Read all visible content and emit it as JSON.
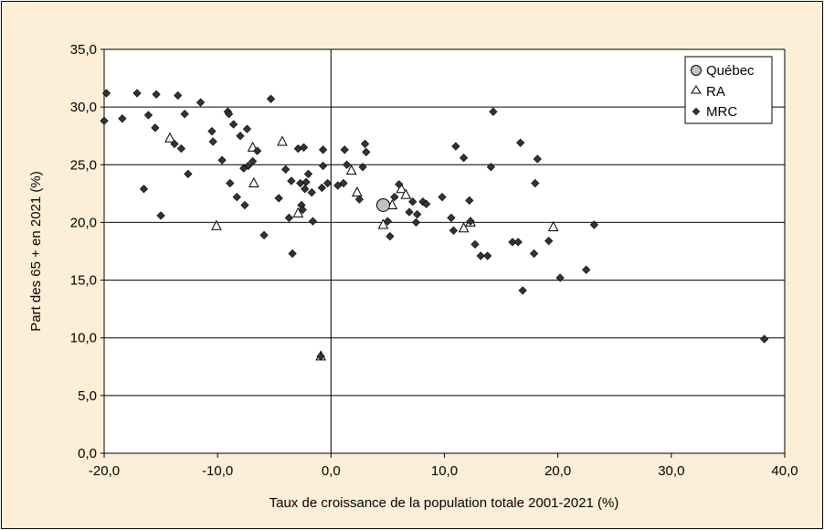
{
  "chart_data": {
    "type": "scatter",
    "xlabel": "Taux de croissance de la population totale 2001-2021 (%)",
    "ylabel": "Part des 65 + en 2021 (%)",
    "xlim": [
      -20,
      40
    ],
    "ylim": [
      0,
      35
    ],
    "x_ticks": [
      "-20,0",
      "-10,0",
      "0,0",
      "10,0",
      "20,0",
      "30,0",
      "40,0"
    ],
    "y_ticks": [
      "0,0",
      "5,0",
      "10,0",
      "15,0",
      "20,0",
      "25,0",
      "30,0",
      "35,0"
    ],
    "grid": "horizontal",
    "legend_position": "top-right",
    "series": [
      {
        "name": "Québec",
        "marker": "circle",
        "color": "#c0c0c0",
        "points": [
          [
            4.6,
            21.5
          ]
        ]
      },
      {
        "name": "RA",
        "marker": "triangle",
        "color": "#ffffff",
        "points": [
          [
            -14.2,
            27.3
          ],
          [
            -10.1,
            19.7
          ],
          [
            -6.9,
            26.5
          ],
          [
            -6.8,
            23.4
          ],
          [
            -4.3,
            27.0
          ],
          [
            -2.9,
            20.8
          ],
          [
            -0.9,
            8.4
          ],
          [
            1.8,
            24.5
          ],
          [
            2.3,
            22.6
          ],
          [
            4.6,
            19.8
          ],
          [
            5.4,
            21.5
          ],
          [
            6.2,
            22.9
          ],
          [
            6.6,
            22.4
          ],
          [
            11.7,
            19.5
          ],
          [
            12.3,
            20.0
          ],
          [
            19.6,
            19.6
          ]
        ]
      },
      {
        "name": "MRC",
        "marker": "diamond",
        "color": "#333333",
        "points": [
          [
            -20.0,
            28.8
          ],
          [
            -19.8,
            31.2
          ],
          [
            -18.4,
            29.0
          ],
          [
            -17.1,
            31.2
          ],
          [
            -16.5,
            22.9
          ],
          [
            -16.1,
            29.3
          ],
          [
            -15.5,
            28.2
          ],
          [
            -15.4,
            31.1
          ],
          [
            -15.0,
            20.6
          ],
          [
            -13.8,
            26.8
          ],
          [
            -13.5,
            31.0
          ],
          [
            -13.2,
            26.4
          ],
          [
            -12.9,
            29.4
          ],
          [
            -12.6,
            24.2
          ],
          [
            -11.5,
            30.4
          ],
          [
            -10.5,
            27.9
          ],
          [
            -10.4,
            27.0
          ],
          [
            -9.6,
            25.4
          ],
          [
            -9.1,
            29.6
          ],
          [
            -9.0,
            29.4
          ],
          [
            -8.9,
            23.4
          ],
          [
            -8.6,
            28.5
          ],
          [
            -8.3,
            22.2
          ],
          [
            -8.0,
            27.5
          ],
          [
            -7.7,
            24.7
          ],
          [
            -7.6,
            21.5
          ],
          [
            -7.4,
            28.1
          ],
          [
            -7.3,
            24.9
          ],
          [
            -6.9,
            25.3
          ],
          [
            -6.5,
            26.2
          ],
          [
            -5.9,
            18.9
          ],
          [
            -5.3,
            30.7
          ],
          [
            -4.6,
            22.1
          ],
          [
            -4.0,
            24.6
          ],
          [
            -3.7,
            20.4
          ],
          [
            -3.5,
            23.6
          ],
          [
            -3.4,
            17.3
          ],
          [
            -2.9,
            26.4
          ],
          [
            -2.7,
            23.4
          ],
          [
            -2.6,
            21.5
          ],
          [
            -2.5,
            21.1
          ],
          [
            -2.4,
            26.5
          ],
          [
            -2.3,
            22.9
          ],
          [
            -2.2,
            23.5
          ],
          [
            -2.0,
            24.2
          ],
          [
            -1.7,
            22.6
          ],
          [
            -1.6,
            20.1
          ],
          [
            -0.8,
            23.0
          ],
          [
            -0.7,
            26.3
          ],
          [
            -0.7,
            24.9
          ],
          [
            -0.9,
            8.4
          ],
          [
            -0.3,
            23.4
          ],
          [
            0.6,
            23.2
          ],
          [
            1.1,
            23.4
          ],
          [
            1.2,
            26.3
          ],
          [
            1.4,
            25.0
          ],
          [
            2.5,
            22.0
          ],
          [
            2.8,
            24.8
          ],
          [
            3.0,
            26.8
          ],
          [
            3.1,
            26.1
          ],
          [
            4.9,
            21.6
          ],
          [
            5.0,
            20.1
          ],
          [
            5.2,
            18.8
          ],
          [
            5.6,
            22.2
          ],
          [
            6.0,
            23.3
          ],
          [
            6.9,
            20.9
          ],
          [
            7.2,
            21.8
          ],
          [
            7.5,
            20.0
          ],
          [
            7.6,
            20.7
          ],
          [
            8.1,
            21.8
          ],
          [
            8.4,
            21.6
          ],
          [
            9.8,
            22.2
          ],
          [
            10.6,
            20.4
          ],
          [
            10.8,
            19.3
          ],
          [
            11.0,
            26.6
          ],
          [
            11.7,
            25.6
          ],
          [
            12.2,
            21.9
          ],
          [
            12.3,
            20.1
          ],
          [
            12.7,
            18.1
          ],
          [
            13.2,
            17.1
          ],
          [
            13.8,
            17.1
          ],
          [
            14.1,
            24.8
          ],
          [
            14.3,
            29.6
          ],
          [
            16.0,
            18.3
          ],
          [
            16.5,
            18.3
          ],
          [
            16.7,
            26.9
          ],
          [
            16.9,
            14.1
          ],
          [
            17.9,
            17.3
          ],
          [
            18.0,
            23.4
          ],
          [
            18.2,
            25.5
          ],
          [
            19.2,
            18.4
          ],
          [
            20.2,
            15.2
          ],
          [
            22.5,
            15.9
          ],
          [
            23.2,
            19.8
          ],
          [
            38.2,
            9.9
          ]
        ]
      }
    ]
  },
  "legend": {
    "items": [
      {
        "label": "Québec",
        "marker": "circle"
      },
      {
        "label": "RA",
        "marker": "triangle"
      },
      {
        "label": "MRC",
        "marker": "diamond"
      }
    ]
  },
  "colors": {
    "frame_background": "#fdefd7",
    "plot_background": "#ffffff",
    "gridline": "#000000",
    "diamond": "#333333",
    "circle_fill": "#c0c0c0"
  }
}
